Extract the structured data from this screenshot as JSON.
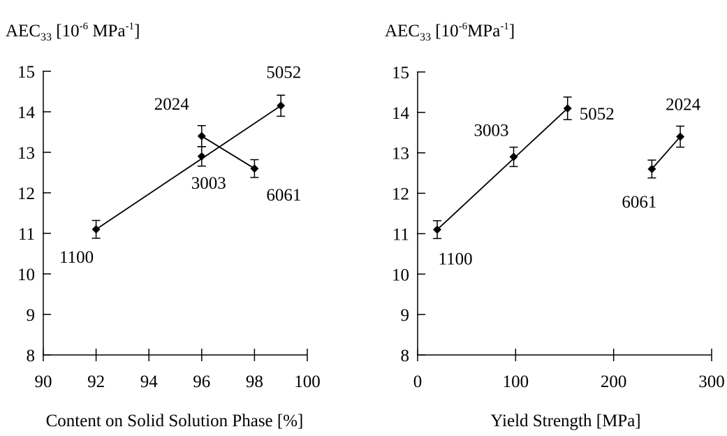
{
  "chart_data": [
    {
      "type": "scatter",
      "ylabel": {
        "base": "AEC",
        "sub": "33",
        "open": " [10",
        "exp1": "-6",
        "unit": " MPa",
        "exp2": "-1",
        "close": "]"
      },
      "xlabel": "Content on Solid Solution Phase [%]",
      "xlim": [
        90,
        100
      ],
      "ylim": [
        8,
        15
      ],
      "xticks": [
        90,
        92,
        94,
        96,
        98,
        100
      ],
      "yticks": [
        8,
        9,
        10,
        11,
        12,
        13,
        14,
        15
      ],
      "points": [
        {
          "label": "1100",
          "x": 92,
          "y": 11.1,
          "err": 0.22
        },
        {
          "label": "3003",
          "x": 96,
          "y": 12.9,
          "err": 0.24
        },
        {
          "label": "2024",
          "x": 96,
          "y": 13.4,
          "err": 0.26
        },
        {
          "label": "6061",
          "x": 98,
          "y": 12.6,
          "err": 0.22
        },
        {
          "label": "5052",
          "x": 99,
          "y": 14.15,
          "err": 0.26
        }
      ],
      "lines": [
        {
          "x": [
            92,
            99
          ],
          "y": [
            11.1,
            14.15
          ]
        },
        {
          "x": [
            96,
            98
          ],
          "y": [
            13.4,
            12.6
          ]
        }
      ]
    },
    {
      "type": "scatter",
      "ylabel": {
        "base": "AEC",
        "sub": "33",
        "open": " [10",
        "exp1": "-6",
        "unit": "MPa",
        "exp2": "-1",
        "close": "]"
      },
      "xlabel": "Yield Strength [MPa]",
      "xlim": [
        0,
        300
      ],
      "ylim": [
        8,
        15
      ],
      "xticks": [
        0,
        100,
        200,
        300
      ],
      "yticks": [
        8,
        9,
        10,
        11,
        12,
        13,
        14,
        15
      ],
      "points": [
        {
          "label": "1100",
          "x": 20,
          "y": 11.1,
          "err": 0.22
        },
        {
          "label": "3003",
          "x": 98,
          "y": 12.9,
          "err": 0.24
        },
        {
          "label": "5052",
          "x": 153,
          "y": 14.1,
          "err": 0.28
        },
        {
          "label": "6061",
          "x": 239,
          "y": 12.6,
          "err": 0.22
        },
        {
          "label": "2024",
          "x": 268,
          "y": 13.4,
          "err": 0.26
        }
      ],
      "lines": [
        {
          "x": [
            20,
            153
          ],
          "y": [
            11.1,
            14.1
          ]
        },
        {
          "x": [
            239,
            268
          ],
          "y": [
            12.6,
            13.4
          ]
        }
      ]
    }
  ]
}
